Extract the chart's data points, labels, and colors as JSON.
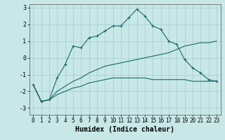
{
  "xlabel": "Humidex (Indice chaleur)",
  "background_color": "#c8e8e8",
  "grid_color": "#a8d0d0",
  "line_color": "#1a6868",
  "xlim": [
    -0.5,
    23.5
  ],
  "ylim": [
    -3.4,
    3.2
  ],
  "xticks": [
    0,
    1,
    2,
    3,
    4,
    5,
    6,
    7,
    8,
    9,
    10,
    11,
    12,
    13,
    14,
    15,
    16,
    17,
    18,
    19,
    20,
    21,
    22,
    23
  ],
  "yticks": [
    -3,
    -2,
    -1,
    0,
    1,
    2,
    3
  ],
  "series1_x": [
    0,
    1,
    2,
    3,
    4,
    5,
    6,
    7,
    8,
    9,
    10,
    11,
    12,
    13,
    14,
    15,
    16,
    17,
    18,
    19,
    20,
    21,
    22,
    23
  ],
  "series1_y": [
    -1.6,
    -2.6,
    -2.5,
    -1.2,
    -0.4,
    0.7,
    0.6,
    1.2,
    1.3,
    1.6,
    1.9,
    1.9,
    2.4,
    2.9,
    2.5,
    1.9,
    1.7,
    1.0,
    0.8,
    -0.1,
    -0.6,
    -0.9,
    -1.3,
    -1.4
  ],
  "series2_x": [
    0,
    1,
    2,
    3,
    4,
    5,
    6,
    7,
    8,
    9,
    10,
    11,
    12,
    13,
    14,
    15,
    16,
    17,
    18,
    19,
    20,
    21,
    22,
    23
  ],
  "series2_y": [
    -1.6,
    -2.6,
    -2.5,
    -2.2,
    -2.0,
    -1.8,
    -1.7,
    -1.5,
    -1.4,
    -1.3,
    -1.2,
    -1.2,
    -1.2,
    -1.2,
    -1.2,
    -1.3,
    -1.3,
    -1.3,
    -1.3,
    -1.3,
    -1.4,
    -1.4,
    -1.4,
    -1.4
  ],
  "series3_x": [
    0,
    1,
    2,
    3,
    4,
    5,
    6,
    7,
    8,
    9,
    10,
    11,
    12,
    13,
    14,
    15,
    16,
    17,
    18,
    19,
    20,
    21,
    22,
    23
  ],
  "series3_y": [
    -1.6,
    -2.6,
    -2.5,
    -2.0,
    -1.7,
    -1.4,
    -1.2,
    -0.9,
    -0.7,
    -0.5,
    -0.4,
    -0.3,
    -0.2,
    -0.1,
    0.0,
    0.1,
    0.2,
    0.3,
    0.5,
    0.7,
    0.8,
    0.9,
    0.9,
    1.0
  ],
  "xlabel_fontsize": 7,
  "tick_fontsize": 5.5,
  "marker_size": 3,
  "linewidth": 0.8
}
